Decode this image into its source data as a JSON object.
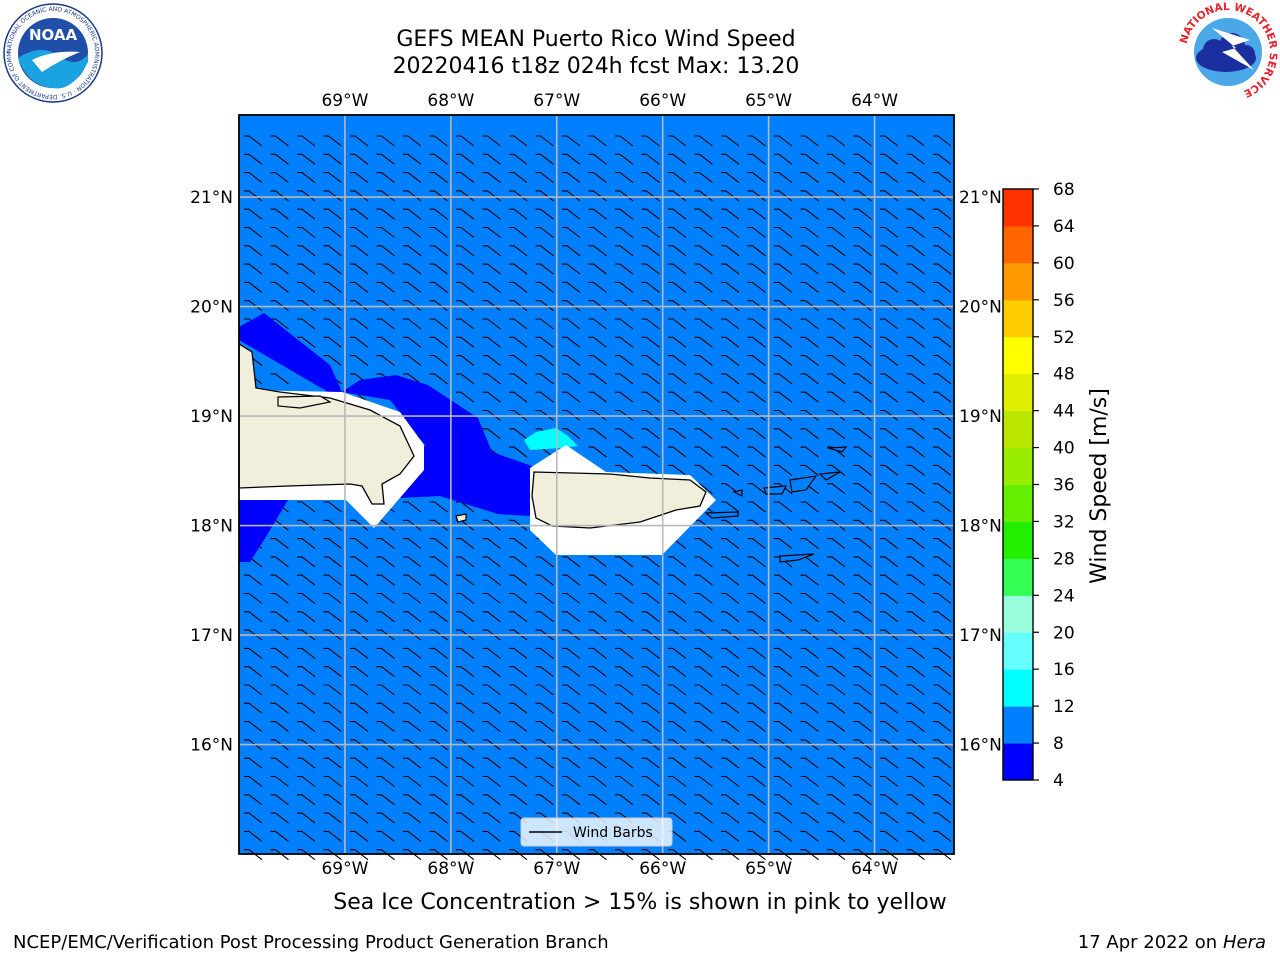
{
  "title": {
    "line1": "GEFS MEAN Puerto Rico Wind Speed",
    "line2": "20220416 t18z 024h fcst   Max: 13.20"
  },
  "caption": "Sea Ice Concentration > 15% is shown in pink to yellow",
  "footer": {
    "left": "NCEP/EMC/Verification Post Processing Product Generation Branch",
    "date": "17 Apr 2022 on ",
    "machine": "Hera"
  },
  "logos": {
    "noaa": {
      "text": "NOAA",
      "ring_text": "NATIONAL OCEANIC AND ATMOSPHERIC ADMINISTRATION · U.S. DEPARTMENT OF COMMERCE"
    },
    "nws": {
      "ring_text": "NATIONAL WEATHER SERVICE"
    }
  },
  "map": {
    "lon_labels": [
      "69°W",
      "68°W",
      "67°W",
      "66°W",
      "65°W",
      "64°W"
    ],
    "lat_labels": [
      "21°N",
      "20°N",
      "19°N",
      "18°N",
      "17°N",
      "16°N"
    ],
    "lon_range": [
      -70.0,
      -63.25
    ],
    "lat_range": [
      15.0,
      21.75
    ],
    "grid": true,
    "ocean_color": "#0080ff",
    "land_color": "#efefdc",
    "legend": {
      "label": "Wind Barbs",
      "placement": "bottom-center"
    }
  },
  "colorbar": {
    "label": "Wind Speed [m/s]",
    "ticks": [
      "4",
      "8",
      "12",
      "16",
      "20",
      "24",
      "28",
      "32",
      "36",
      "40",
      "44",
      "48",
      "52",
      "56",
      "60",
      "64",
      "68"
    ],
    "colors": [
      "#0000ff",
      "#0080ff",
      "#00ffff",
      "#66ffff",
      "#99ffdd",
      "#33ff55",
      "#22ee00",
      "#66ee00",
      "#99ee00",
      "#bbe600",
      "#ddee00",
      "#ffff00",
      "#ffcc00",
      "#ff9900",
      "#ff6600",
      "#ff3300"
    ]
  }
}
